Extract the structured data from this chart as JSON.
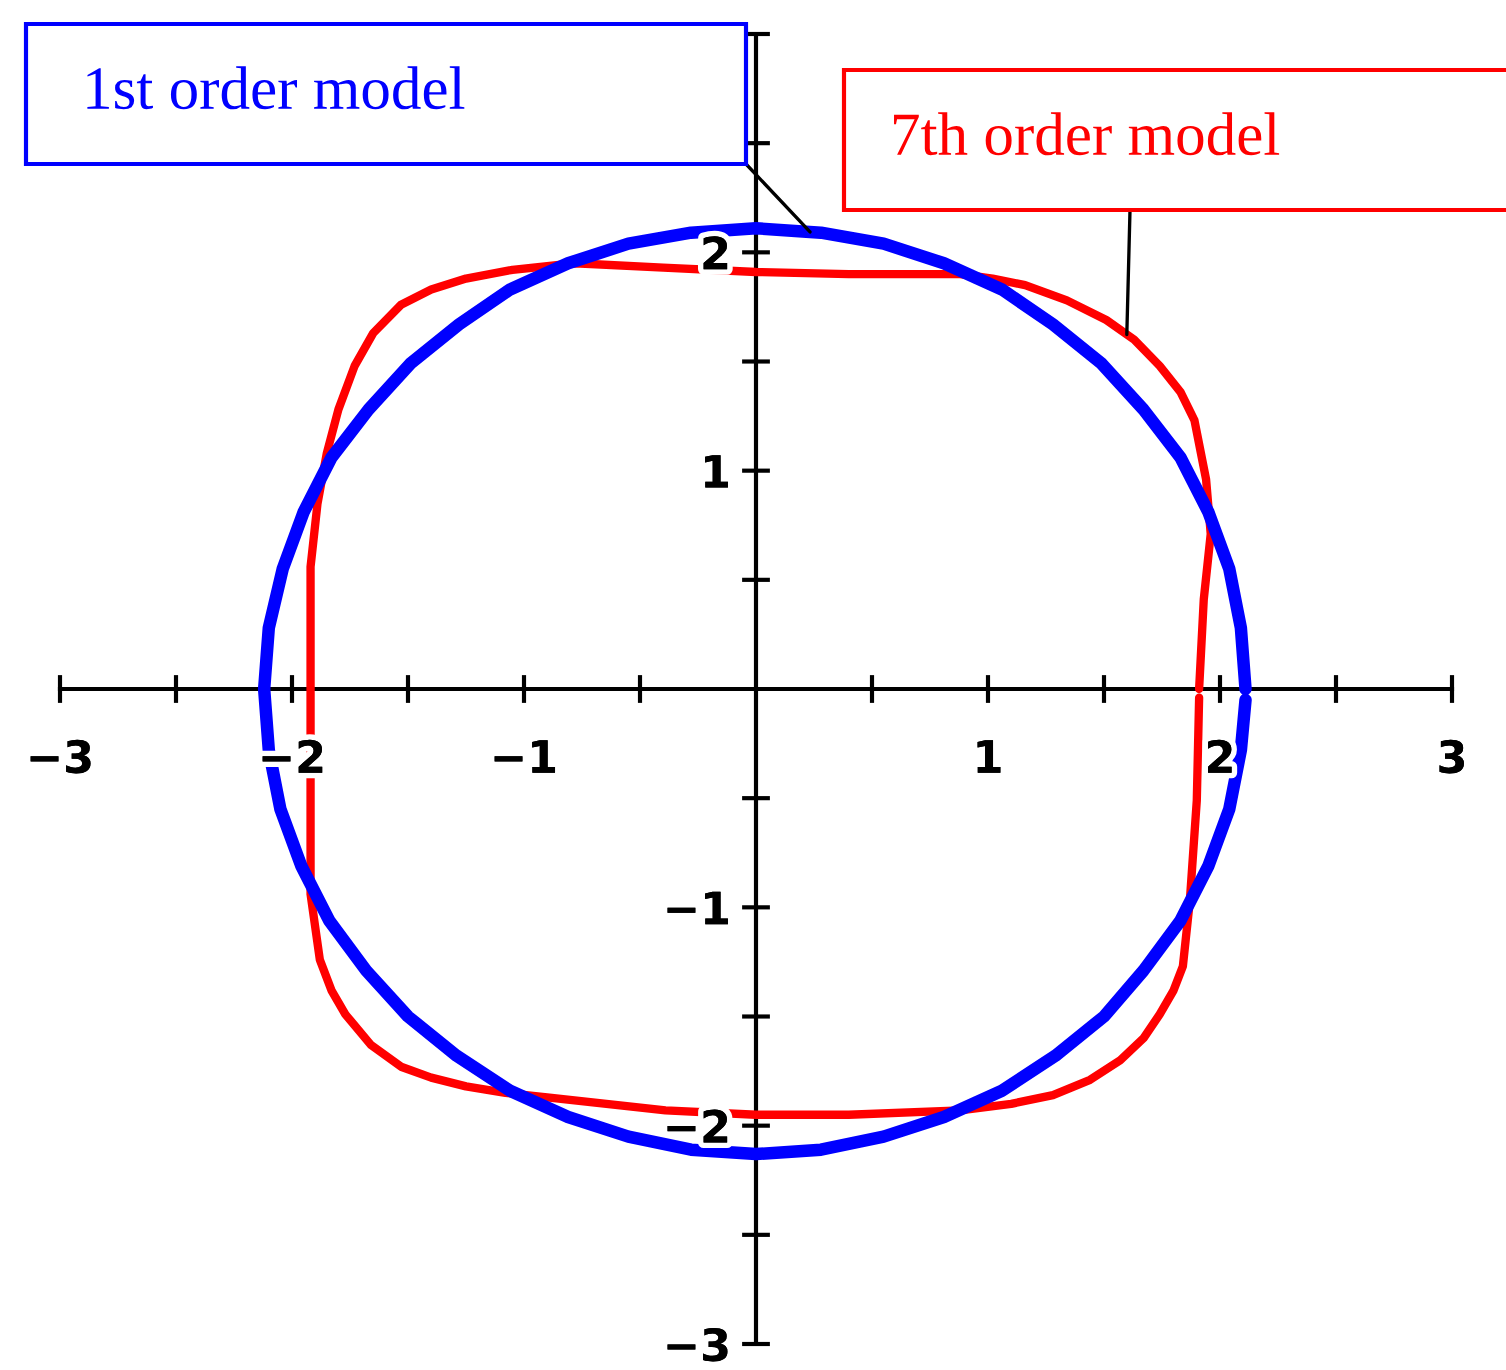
{
  "chart_data": {
    "type": "line",
    "xlim": [
      -3,
      3
    ],
    "ylim": [
      -3,
      3
    ],
    "xticks": [
      {
        "value": -3,
        "label": "−3"
      },
      {
        "value": -2.5,
        "label": null
      },
      {
        "value": -2,
        "label": "−2"
      },
      {
        "value": -1.5,
        "label": null
      },
      {
        "value": -1,
        "label": "−1"
      },
      {
        "value": -0.5,
        "label": null
      },
      {
        "value": 0.5,
        "label": null
      },
      1,
      {
        "value": 1.5,
        "label": null
      },
      2,
      {
        "value": 2.5,
        "label": null
      },
      3
    ],
    "yticks": [
      {
        "value": -3,
        "label": "−3"
      },
      {
        "value": -2.5,
        "label": null
      },
      {
        "value": -2,
        "label": "−2"
      },
      {
        "value": -1.5,
        "label": null
      },
      {
        "value": -1,
        "label": "−1"
      },
      {
        "value": -0.5,
        "label": null
      },
      {
        "value": 0.5,
        "label": null
      },
      1,
      {
        "value": 1.5,
        "label": null
      },
      2,
      {
        "value": 2.5,
        "label": null
      },
      {
        "value": 3,
        "label": null
      }
    ],
    "series": [
      {
        "name": "1st order model",
        "color": "#0000ff",
        "x": [
          2.11,
          2.09,
          2.04,
          1.95,
          1.83,
          1.67,
          1.49,
          1.28,
          1.06,
          0.81,
          0.55,
          0.28,
          0,
          -0.28,
          -0.55,
          -0.81,
          -1.06,
          -1.28,
          -1.49,
          -1.67,
          -1.83,
          -1.95,
          -2.04,
          -2.1,
          -2.12,
          -2.1,
          -2.05,
          -1.96,
          -1.84,
          -1.68,
          -1.5,
          -1.29,
          -1.06,
          -0.81,
          -0.55,
          -0.28,
          0,
          0.28,
          0.55,
          0.81,
          1.06,
          1.29,
          1.5,
          1.67,
          1.83,
          1.95,
          2.04,
          2.09,
          2.11
        ],
        "values": [
          0,
          0.28,
          0.55,
          0.81,
          1.06,
          1.28,
          1.49,
          1.67,
          1.83,
          1.95,
          2.04,
          2.09,
          2.11,
          2.09,
          2.04,
          1.95,
          1.83,
          1.67,
          1.49,
          1.28,
          1.06,
          0.81,
          0.55,
          0.28,
          0,
          -0.28,
          -0.55,
          -0.81,
          -1.06,
          -1.29,
          -1.5,
          -1.68,
          -1.84,
          -1.96,
          -2.05,
          -2.11,
          -2.13,
          -2.11,
          -2.05,
          -1.96,
          -1.84,
          -1.68,
          -1.5,
          -1.29,
          -1.06,
          -0.81,
          -0.55,
          -0.28,
          -0.05
        ]
      },
      {
        "name": "7th order model",
        "color": "#ff0000",
        "x": [
          1.91,
          1.93,
          1.96,
          1.94,
          1.89,
          1.83,
          1.74,
          1.63,
          1.51,
          1.34,
          1.16,
          1.02,
          0.88,
          0.4,
          0,
          -0.4,
          -0.78,
          -1.05,
          -1.25,
          -1.4,
          -1.53,
          -1.65,
          -1.73,
          -1.8,
          -1.85,
          -1.89,
          -1.92,
          -1.92,
          -1.92,
          -1.92,
          -1.88,
          -1.83,
          -1.77,
          -1.66,
          -1.53,
          -1.4,
          -1.25,
          -1.08,
          -0.9,
          -0.39,
          0,
          0.4,
          0.88,
          1.1,
          1.28,
          1.44,
          1.57,
          1.67,
          1.74,
          1.8,
          1.84,
          1.87,
          1.9,
          1.91
        ],
        "values": [
          0,
          0.41,
          0.71,
          0.96,
          1.23,
          1.36,
          1.48,
          1.6,
          1.69,
          1.78,
          1.85,
          1.88,
          1.9,
          1.9,
          1.91,
          1.93,
          1.95,
          1.92,
          1.88,
          1.83,
          1.76,
          1.63,
          1.48,
          1.28,
          1.08,
          0.85,
          0.56,
          0,
          -0.48,
          -0.94,
          -1.24,
          -1.38,
          -1.49,
          -1.63,
          -1.73,
          -1.78,
          -1.82,
          -1.85,
          -1.87,
          -1.93,
          -1.95,
          -1.95,
          -1.93,
          -1.9,
          -1.86,
          -1.79,
          -1.7,
          -1.6,
          -1.49,
          -1.38,
          -1.27,
          -0.97,
          -0.51,
          -0.04
        ]
      }
    ]
  }
}
